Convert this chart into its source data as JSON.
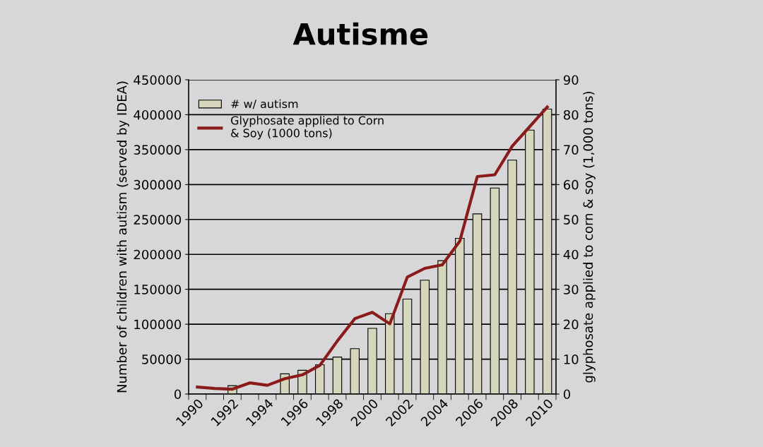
{
  "chart_data": {
    "type": "bar",
    "title": "Autisme",
    "ylabel": "Number of children with autism (served by IDEA)",
    "y2label": "glyphosate applied to corn & soy (1,000 tons)",
    "categories": [
      "1990",
      null,
      "1992",
      null,
      "1994",
      null,
      "1996",
      null,
      "1998",
      null,
      "2000",
      null,
      "2002",
      null,
      "2004",
      null,
      "2006",
      null,
      "2008",
      null,
      "2010"
    ],
    "series": [
      {
        "name": "# w/ autism",
        "color": "#d6d6bc",
        "values": [
          null,
          null,
          12000,
          null,
          null,
          29000,
          34000,
          42000,
          53000,
          65000,
          94000,
          115000,
          136000,
          163000,
          191000,
          223000,
          258000,
          295000,
          335000,
          378000,
          408000
        ]
      },
      {
        "name": "Glyphosate applied to Corn\n& Soy (1000 tons)",
        "type": "line",
        "axis": "y2",
        "color": "#8b1a1a",
        "values": [
          2.0,
          1.6,
          1.4,
          3.2,
          2.5,
          4.4,
          5.5,
          8.2,
          15.2,
          21.6,
          23.4,
          20.1,
          33.5,
          36.0,
          37.0,
          43.8,
          62.3,
          62.8,
          71.0,
          76.6,
          82.2
        ]
      }
    ],
    "ylim": [
      0,
      450000
    ],
    "yticks": [
      0,
      50000,
      100000,
      150000,
      200000,
      250000,
      300000,
      350000,
      400000,
      450000
    ],
    "y2lim": [
      0,
      90
    ],
    "y2ticks": [
      0,
      10,
      20,
      30,
      40,
      50,
      60,
      70,
      80,
      90
    ],
    "grid": "y",
    "legend": "top left",
    "marker": "none",
    "line_style": "solid"
  }
}
